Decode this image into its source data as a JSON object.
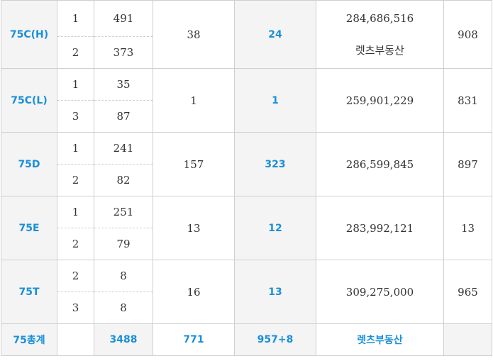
{
  "groups": [
    {
      "category": "75C(H)",
      "rows": [
        {
          "sub": "1",
          "count": "491"
        },
        {
          "sub": "2",
          "count": "373"
        }
      ],
      "a": "38",
      "b": "24",
      "price": "284,686,516",
      "price_note": "렛츠부동산",
      "last": "908"
    },
    {
      "category": "75C(L)",
      "rows": [
        {
          "sub": "1",
          "count": "35"
        },
        {
          "sub": "3",
          "count": "87"
        }
      ],
      "a": "1",
      "b": "1",
      "price": "259,901,229",
      "price_note": "",
      "last": "831"
    },
    {
      "category": "75D",
      "rows": [
        {
          "sub": "1",
          "count": "241"
        },
        {
          "sub": "2",
          "count": "82"
        }
      ],
      "a": "157",
      "b": "323",
      "price": "286,599,845",
      "price_note": "",
      "last": "897"
    },
    {
      "category": "75E",
      "rows": [
        {
          "sub": "1",
          "count": "251"
        },
        {
          "sub": "2",
          "count": "79"
        }
      ],
      "a": "13",
      "b": "12",
      "price": "283,992,121",
      "price_note": "",
      "last": "13"
    },
    {
      "category": "75T",
      "rows": [
        {
          "sub": "2",
          "count": "8"
        },
        {
          "sub": "3",
          "count": "8"
        }
      ],
      "a": "16",
      "b": "13",
      "price": "309,275,000",
      "price_note": "",
      "last": "965"
    }
  ],
  "total": {
    "label": "75총계",
    "sub": "",
    "count": "3488",
    "a": "771",
    "b": "957+8",
    "price": "렛츠부동산",
    "last": ""
  },
  "colors": {
    "accent": "#1a8fd8",
    "header_bg": "#f4f4f4",
    "border": "#cfcfcf"
  }
}
